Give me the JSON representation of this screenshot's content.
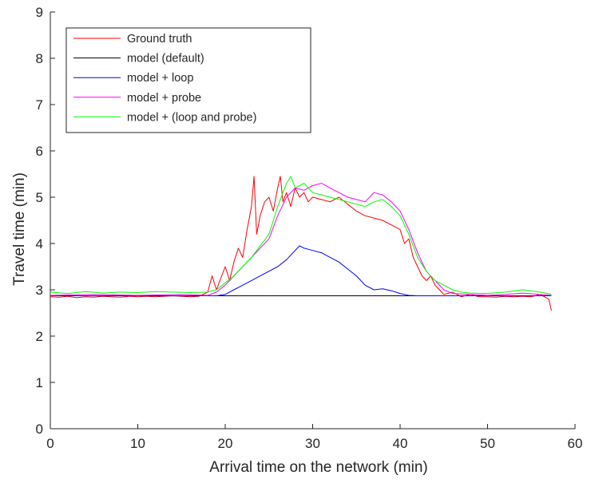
{
  "chart_data": {
    "type": "line",
    "xlabel": "Arrival time on the network (min)",
    "ylabel": "Travel time (min)",
    "xlim": [
      0,
      60
    ],
    "ylim": [
      0,
      9
    ],
    "xticks": [
      0,
      10,
      20,
      30,
      40,
      50,
      60
    ],
    "yticks": [
      0,
      1,
      2,
      3,
      4,
      5,
      6,
      7,
      8,
      9
    ],
    "grid": false,
    "legend_position": "top-left",
    "series": [
      {
        "name": "Ground truth",
        "color": "#ff0000",
        "x": [
          0,
          1,
          2,
          3,
          4,
          5,
          6,
          7,
          8,
          9,
          10,
          11,
          12,
          13,
          14,
          15,
          16,
          17,
          18,
          18.5,
          19,
          19.5,
          20,
          20.5,
          21,
          21.5,
          22,
          22.5,
          23,
          23.3,
          23.6,
          24,
          24.5,
          25,
          25.5,
          26,
          26.3,
          26.6,
          27,
          27.5,
          28,
          28.5,
          29,
          29.5,
          30,
          31,
          32,
          33,
          34,
          35,
          36,
          37,
          38,
          39,
          40,
          40.5,
          41,
          41.5,
          42,
          42.5,
          43,
          43.5,
          44,
          44.5,
          45,
          46,
          47,
          48,
          49,
          50,
          51,
          52,
          53,
          54,
          55,
          56,
          56.5,
          57,
          57.3
        ],
        "y": [
          2.85,
          2.84,
          2.86,
          2.83,
          2.85,
          2.84,
          2.86,
          2.85,
          2.84,
          2.86,
          2.85,
          2.86,
          2.85,
          2.86,
          2.87,
          2.86,
          2.85,
          2.86,
          2.95,
          3.3,
          3.0,
          3.25,
          3.5,
          3.2,
          3.6,
          3.9,
          3.7,
          4.3,
          4.8,
          5.45,
          4.2,
          4.6,
          4.9,
          5.0,
          4.7,
          5.2,
          5.45,
          4.9,
          5.1,
          4.8,
          5.2,
          5.0,
          5.1,
          4.9,
          5.0,
          4.95,
          4.9,
          5.0,
          4.85,
          4.7,
          4.6,
          4.55,
          4.5,
          4.4,
          4.3,
          4.0,
          4.1,
          3.7,
          3.5,
          3.3,
          3.2,
          3.3,
          3.1,
          3.0,
          2.9,
          2.95,
          2.85,
          2.9,
          2.85,
          2.85,
          2.84,
          2.86,
          2.85,
          2.86,
          2.85,
          2.9,
          2.85,
          2.8,
          2.55
        ]
      },
      {
        "name": "model (default)",
        "color": "#000000",
        "x": [
          0,
          57.3
        ],
        "y": [
          2.87,
          2.87
        ]
      },
      {
        "name": "model + loop",
        "color": "#0000ff",
        "x": [
          0,
          19,
          20,
          21,
          22,
          23,
          24,
          25,
          26,
          27,
          28,
          28.5,
          29,
          30,
          31,
          32,
          33,
          34,
          35,
          36,
          37,
          38,
          39,
          40,
          41,
          42,
          45,
          50,
          57.3
        ],
        "y": [
          2.87,
          2.87,
          2.9,
          3.0,
          3.1,
          3.2,
          3.3,
          3.4,
          3.5,
          3.65,
          3.85,
          3.95,
          3.9,
          3.85,
          3.8,
          3.7,
          3.6,
          3.45,
          3.3,
          3.1,
          3.0,
          3.02,
          2.98,
          2.92,
          2.88,
          2.87,
          2.87,
          2.87,
          2.87
        ]
      },
      {
        "name": "model + probe",
        "color": "#ff00ff",
        "x": [
          0,
          5,
          10,
          15,
          18,
          19,
          20,
          21,
          22,
          23,
          24,
          25,
          26,
          27,
          28,
          29,
          30,
          31,
          32,
          33,
          34,
          35,
          36,
          37,
          38,
          39,
          40,
          41,
          42,
          43,
          44,
          45,
          46,
          48,
          50,
          52,
          54,
          56,
          57.3
        ],
        "y": [
          2.88,
          2.9,
          2.88,
          2.9,
          2.88,
          2.95,
          3.1,
          3.3,
          3.5,
          3.7,
          3.9,
          4.1,
          4.6,
          5.0,
          5.2,
          5.15,
          5.25,
          5.3,
          5.2,
          5.1,
          5.0,
          4.95,
          4.9,
          5.1,
          5.05,
          4.9,
          4.7,
          4.3,
          3.8,
          3.4,
          3.2,
          3.0,
          2.92,
          2.9,
          2.88,
          2.9,
          2.93,
          2.9,
          2.88
        ]
      },
      {
        "name": "model + (loop and probe)",
        "color": "#00ff00",
        "x": [
          0,
          2,
          4,
          6,
          8,
          10,
          12,
          14,
          16,
          18,
          19,
          20,
          21,
          22,
          23,
          24,
          25,
          26,
          27,
          27.5,
          28,
          29,
          30,
          31,
          32,
          33,
          34,
          35,
          36,
          37,
          38,
          39,
          40,
          41,
          42,
          43,
          44,
          45,
          46,
          47,
          48,
          50,
          52,
          54,
          56,
          57.3
        ],
        "y": [
          2.95,
          2.92,
          2.96,
          2.93,
          2.95,
          2.94,
          2.96,
          2.95,
          2.94,
          2.95,
          3.0,
          3.15,
          3.3,
          3.5,
          3.7,
          3.95,
          4.2,
          4.8,
          5.3,
          5.45,
          5.2,
          5.3,
          5.1,
          5.05,
          5.0,
          4.95,
          4.9,
          4.85,
          4.8,
          4.9,
          4.95,
          4.8,
          4.6,
          4.2,
          3.7,
          3.4,
          3.2,
          3.1,
          3.0,
          2.95,
          2.93,
          2.92,
          2.95,
          3.0,
          2.95,
          2.9
        ]
      }
    ]
  }
}
